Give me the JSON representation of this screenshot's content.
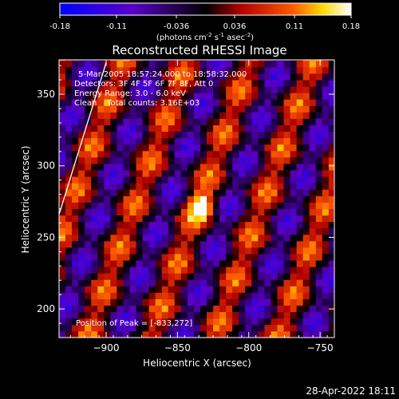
{
  "chart_data": {
    "type": "heatmap",
    "title": "Reconstructed RHESSI Image",
    "xlabel": "Heliocentric X (arcsec)",
    "ylabel": "Heliocentric Y (arcsec)",
    "xlim": [
      -933,
      -740
    ],
    "ylim": [
      180,
      374
    ],
    "x_ticks": [
      -900,
      -850,
      -800,
      -750
    ],
    "y_ticks": [
      200,
      250,
      300,
      350
    ],
    "colorbar": {
      "min": -0.18,
      "max": 0.18,
      "ticks": [
        "-0.18",
        "-0.11",
        "-0.036",
        "0.036",
        "0.11",
        "0.18"
      ],
      "label_pre": "(photons cm",
      "label_exp1": "-2",
      "label_mid": " s",
      "label_exp2": "-1",
      "label_post": " asec",
      "label_exp3": "-2",
      "label_end": ")"
    },
    "annotations": [
      "5-Mar-2005 18:57:24.000 to 18:58:32.000",
      "Detectors: 3F 4F 5F 6F 7F 8F, Att 0",
      "Energy Range: 3.0 - 6.0 keV",
      "Clean    Total counts: 3.16E+03"
    ],
    "peak_label": "Position of Peak = [-833,272]",
    "peak": {
      "x": -833,
      "y": 272,
      "value": 0.18
    },
    "limb_line": [
      [
        -933,
        266
      ],
      [
        -900,
        372
      ]
    ]
  },
  "footer_date": "28-Apr-2022 18:11"
}
